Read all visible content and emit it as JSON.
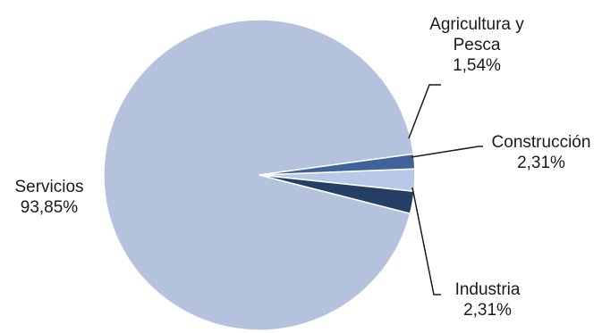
{
  "chart_data": {
    "type": "pie",
    "title": "",
    "slices": [
      {
        "name": "Agricultura y Pesca",
        "name_lines": [
          "Agricultura y",
          "Pesca"
        ],
        "value": 1.54,
        "value_label": "1,54%",
        "color": "#3f6398"
      },
      {
        "name": "Construcción",
        "name_lines": [
          "Construcción"
        ],
        "value": 2.31,
        "value_label": "2,31%",
        "color": "#b7c9e6"
      },
      {
        "name": "Industria",
        "name_lines": [
          "Industria"
        ],
        "value": 2.31,
        "value_label": "2,31%",
        "color": "#243f63"
      },
      {
        "name": "Servicios",
        "name_lines": [
          "Servicios"
        ],
        "value": 93.85,
        "value_label": "93,85%",
        "color": "#b4c2de"
      }
    ],
    "legend": "none",
    "labels": "outside with leader lines"
  }
}
